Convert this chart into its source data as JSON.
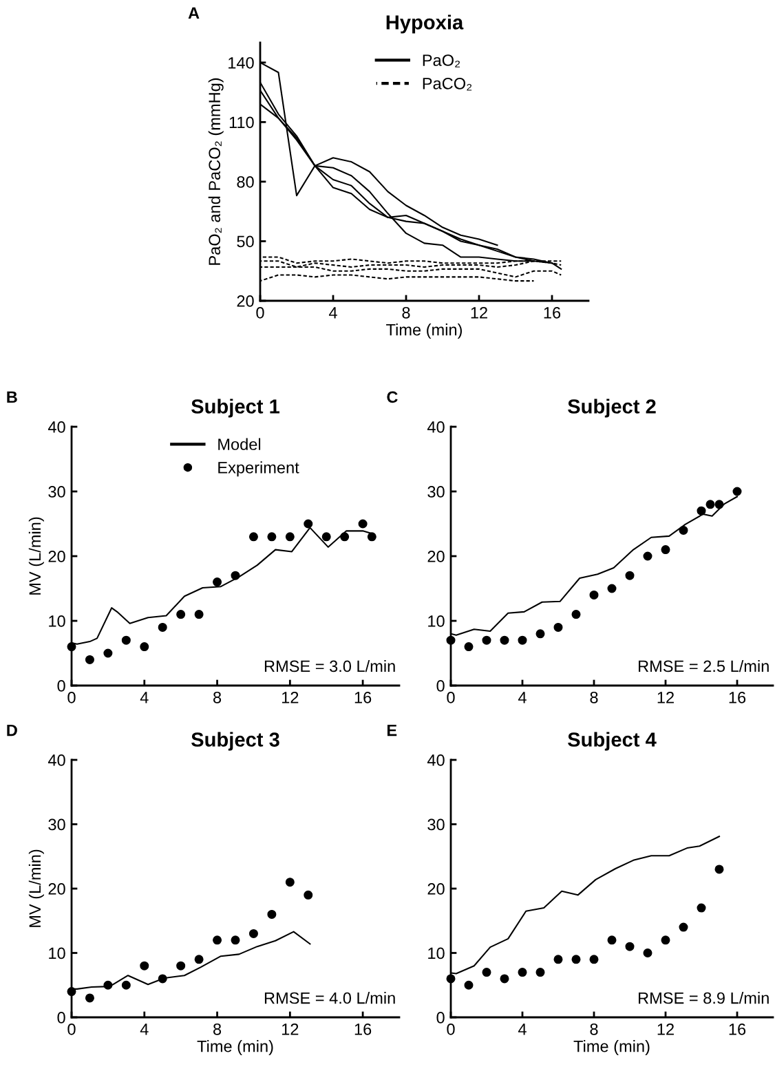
{
  "chart_data": [
    {
      "type": "line",
      "title": "Hypoxia",
      "xlabel": "Time (min)",
      "ylabel": "PaO₂ and PaCO₂ (mmHg)",
      "xlim": [
        0,
        18
      ],
      "ylim": [
        20,
        150
      ],
      "xticks": [
        0,
        4,
        8,
        12,
        16
      ],
      "yticks": [
        20,
        50,
        80,
        110,
        140
      ],
      "legend": "top",
      "grid": false,
      "annotations": [
        "A"
      ],
      "series": [
        {
          "name": "PaO₂",
          "color": "#000000",
          "line_style": "solid",
          "x": [
            0,
            1,
            2,
            3,
            4,
            5,
            6,
            7,
            8,
            9,
            10,
            11,
            12,
            13
          ],
          "values": [
            140,
            135,
            73,
            88,
            92,
            90,
            85,
            75,
            68,
            63,
            57,
            53,
            51,
            48
          ]
        },
        {
          "color": "#000000",
          "line_style": "solid",
          "x": [
            0,
            1,
            2,
            3,
            4,
            5,
            6,
            7,
            8,
            9,
            10,
            11,
            12,
            13,
            14,
            15
          ],
          "values": [
            130,
            114,
            103,
            88,
            87,
            83,
            75,
            64,
            54,
            49,
            48,
            42,
            42,
            41,
            40,
            40
          ]
        },
        {
          "color": "#000000",
          "line_style": "solid",
          "x": [
            0,
            1,
            2,
            3,
            4,
            5,
            6,
            7,
            8,
            9,
            10,
            11,
            12,
            13,
            14,
            15,
            16,
            16.5
          ],
          "values": [
            126,
            112,
            102,
            88,
            81,
            78,
            69,
            62,
            60,
            59,
            55,
            51,
            48,
            45,
            42,
            40,
            39,
            36
          ]
        },
        {
          "color": "#000000",
          "line_style": "solid",
          "x": [
            0,
            1,
            2,
            3,
            4,
            5,
            6,
            7,
            8,
            9,
            10,
            11,
            12,
            13,
            14,
            15,
            16
          ],
          "values": [
            119,
            112,
            101,
            88,
            77,
            74,
            66,
            62,
            63,
            59,
            55,
            50,
            48,
            46,
            42,
            41,
            39
          ]
        },
        {
          "name": "PaCO₂",
          "color": "#000000",
          "line_style": "dashed",
          "x": [
            0,
            1,
            2,
            3,
            4,
            5,
            6,
            7,
            8,
            9,
            10,
            11,
            12,
            13,
            14,
            15,
            16,
            16.5
          ],
          "values": [
            42,
            42,
            39,
            40,
            40,
            41,
            40,
            39,
            40,
            40,
            39,
            39,
            39,
            39,
            40,
            40,
            40,
            40
          ]
        },
        {
          "color": "#000000",
          "line_style": "dashed",
          "x": [
            0,
            1,
            2,
            3,
            4,
            5,
            6,
            7,
            8,
            9,
            10,
            11,
            12,
            13,
            14,
            15,
            16,
            16.5
          ],
          "values": [
            40,
            40,
            37,
            39,
            38,
            37,
            38,
            38,
            38,
            37,
            38,
            38,
            38,
            37,
            38,
            40,
            39,
            38
          ]
        },
        {
          "color": "#000000",
          "line_style": "dashed",
          "x": [
            0,
            1,
            2,
            3,
            4,
            5,
            6,
            7,
            8,
            9,
            10,
            11,
            12,
            13,
            14,
            15,
            16,
            16.5
          ],
          "values": [
            37,
            37,
            37,
            37,
            35,
            35,
            36,
            36,
            35,
            35,
            36,
            36,
            36,
            34,
            32,
            35,
            35,
            33
          ]
        },
        {
          "color": "#000000",
          "line_style": "dashed",
          "x": [
            0,
            1,
            2,
            3,
            4,
            5,
            6,
            7,
            8,
            9,
            10,
            11,
            12,
            13,
            14,
            15
          ],
          "values": [
            30,
            33,
            33,
            32,
            33,
            33,
            32,
            31,
            32,
            32,
            32,
            32,
            32,
            31,
            30,
            30
          ]
        }
      ]
    },
    {
      "type": "line",
      "title": "Subject 1",
      "ylabel": "MV (L/min)",
      "xlim": [
        0,
        18
      ],
      "ylim": [
        0,
        40
      ],
      "xticks": [
        0,
        4,
        8,
        12,
        16
      ],
      "yticks": [
        0,
        10,
        20,
        30,
        40
      ],
      "legend": "top",
      "grid": false,
      "annotations": [
        "B",
        "RMSE = 3.0 L/min"
      ],
      "series": [
        {
          "name": "Model",
          "color": "#000000",
          "line_style": "solid",
          "x": [
            0,
            0.3,
            1,
            1.4,
            2.2,
            2.5,
            3.2,
            4.2,
            5.2,
            6.2,
            7.2,
            8.2,
            9.2,
            10.2,
            11.2,
            12.1,
            13.1,
            14.1,
            15.1,
            16,
            16.5
          ],
          "values": [
            6.6,
            6.4,
            6.8,
            7.3,
            12,
            11.4,
            9.6,
            10.5,
            10.8,
            13.8,
            15.1,
            15.3,
            16.8,
            18.6,
            21,
            20.7,
            24.4,
            21.4,
            23.9,
            23.9,
            23.5
          ]
        },
        {
          "name": "Experiment",
          "type": "scatter",
          "marker": "circle",
          "color": "#000000",
          "x": [
            0,
            1,
            2,
            3,
            4,
            5,
            6,
            7,
            8,
            9,
            10,
            11,
            12,
            13,
            14,
            15,
            16,
            16.5
          ],
          "values": [
            6,
            4,
            5,
            7,
            6,
            9,
            11,
            11,
            16,
            17,
            23,
            23,
            23,
            25,
            23,
            23,
            25,
            23
          ]
        }
      ]
    },
    {
      "type": "line",
      "title": "Subject 2",
      "xlim": [
        0,
        18
      ],
      "ylim": [
        0,
        40
      ],
      "xticks": [
        0,
        4,
        8,
        12,
        16
      ],
      "yticks": [
        0,
        10,
        20,
        30,
        40
      ],
      "grid": false,
      "annotations": [
        "C",
        "RMSE = 2.5 L/min"
      ],
      "series": [
        {
          "color": "#000000",
          "line_style": "solid",
          "x": [
            0,
            0.3,
            1.3,
            2.2,
            3.2,
            4.1,
            5.1,
            6.1,
            7.2,
            8.2,
            9.1,
            10.2,
            11.2,
            12.2,
            13.1,
            14.1,
            14.6,
            15.3,
            16
          ],
          "values": [
            8,
            7.8,
            8.7,
            8.4,
            11.2,
            11.4,
            12.9,
            13,
            16.6,
            17.2,
            18.2,
            21,
            22.9,
            23.1,
            24.9,
            26.5,
            26.2,
            28.1,
            29.2
          ]
        },
        {
          "type": "scatter",
          "marker": "circle",
          "color": "#000000",
          "x": [
            0,
            1,
            2,
            3,
            4,
            5,
            6,
            7,
            8,
            9,
            10,
            11,
            12,
            13,
            14,
            14.5,
            15,
            16
          ],
          "values": [
            7,
            6,
            7,
            7,
            7,
            8,
            9,
            11,
            14,
            15,
            17,
            20,
            21,
            24,
            27,
            28,
            28,
            30
          ]
        }
      ]
    },
    {
      "type": "line",
      "title": "Subject 3",
      "xlabel": "Time (min)",
      "ylabel": "MV (L/min)",
      "xlim": [
        0,
        18
      ],
      "ylim": [
        0,
        40
      ],
      "xticks": [
        0,
        4,
        8,
        12,
        16
      ],
      "yticks": [
        0,
        10,
        20,
        30,
        40
      ],
      "grid": false,
      "annotations": [
        "D",
        "RMSE = 4.0 L/min"
      ],
      "series": [
        {
          "color": "#000000",
          "line_style": "solid",
          "x": [
            0,
            0.3,
            1.1,
            2.1,
            3.1,
            4.2,
            5.1,
            6.2,
            7.1,
            8.2,
            9.2,
            10.2,
            11.2,
            12.2,
            13.1
          ],
          "values": [
            4.4,
            4.4,
            4.7,
            4.8,
            6.5,
            5.1,
            6.1,
            6.5,
            7.8,
            9.5,
            9.8,
            11,
            11.9,
            13.3,
            11.4
          ]
        },
        {
          "type": "scatter",
          "marker": "circle",
          "color": "#000000",
          "x": [
            0,
            1,
            2,
            3,
            4,
            5,
            6,
            7,
            8,
            9,
            10,
            11,
            12,
            13
          ],
          "values": [
            4,
            3,
            5,
            5,
            8,
            6,
            8,
            9,
            12,
            12,
            13,
            16,
            21,
            19
          ]
        }
      ]
    },
    {
      "type": "line",
      "title": "Subject 4",
      "xlabel": "Time (min)",
      "xlim": [
        0,
        18
      ],
      "ylim": [
        0,
        40
      ],
      "xticks": [
        0,
        4,
        8,
        12,
        16
      ],
      "yticks": [
        0,
        10,
        20,
        30,
        40
      ],
      "grid": false,
      "annotations": [
        "E",
        "RMSE = 8.9 L/min"
      ],
      "series": [
        {
          "color": "#000000",
          "line_style": "solid",
          "x": [
            0,
            0.3,
            1.3,
            2.2,
            3.2,
            4.2,
            5.2,
            6.2,
            7.1,
            8.1,
            9.2,
            10.2,
            11.2,
            12.2,
            13.2,
            13.9,
            15
          ],
          "values": [
            6.9,
            6.8,
            8,
            10.9,
            12.2,
            16.5,
            17,
            19.6,
            19,
            21.4,
            23.1,
            24.4,
            25.1,
            25.1,
            26.3,
            26.6,
            28.1
          ]
        },
        {
          "type": "scatter",
          "marker": "circle",
          "color": "#000000",
          "x": [
            0,
            1,
            2,
            3,
            4,
            5,
            6,
            7,
            8,
            9,
            10,
            11,
            12,
            13,
            14,
            15
          ],
          "values": [
            6,
            5,
            7,
            6,
            7,
            7,
            9,
            9,
            9,
            12,
            11,
            10,
            12,
            14,
            17,
            23
          ]
        }
      ]
    }
  ]
}
